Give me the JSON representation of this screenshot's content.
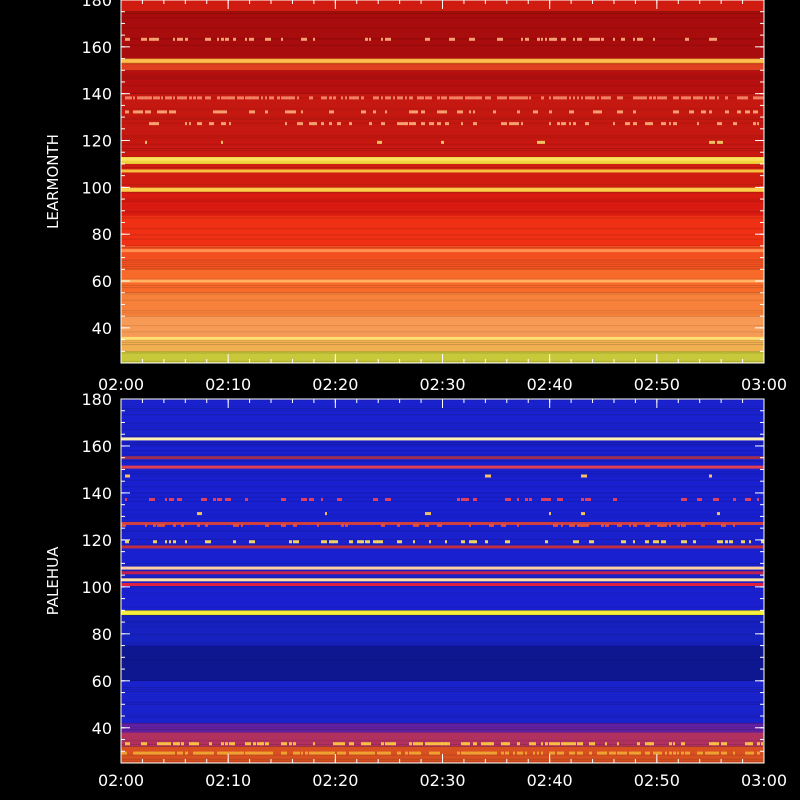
{
  "chart_data": [
    {
      "type": "heatmap",
      "ylabel": "LEARMONTH",
      "xlabel": "",
      "x_ticks": [
        "02:00",
        "02:10",
        "02:20",
        "02:30",
        "02:40",
        "02:50",
        "03:00"
      ],
      "y_ticks": [
        40,
        60,
        80,
        100,
        120,
        140,
        160,
        180
      ],
      "xlim": [
        "02:00",
        "03:00"
      ],
      "ylim": [
        25,
        180
      ],
      "colormap": "red-temperature",
      "bands": [
        {
          "y0": 25,
          "y1": 30,
          "color": "#c8c83a"
        },
        {
          "y0": 30,
          "y1": 35,
          "color": "#f0b050"
        },
        {
          "y0": 35,
          "y1": 45,
          "color": "#f79a55"
        },
        {
          "y0": 45,
          "y1": 55,
          "color": "#f7803a"
        },
        {
          "y0": 55,
          "y1": 65,
          "color": "#f86a2a"
        },
        {
          "y0": 65,
          "y1": 75,
          "color": "#f25020"
        },
        {
          "y0": 75,
          "y1": 88,
          "color": "#f03014"
        },
        {
          "y0": 88,
          "y1": 98,
          "color": "#d81a10"
        },
        {
          "y0": 98,
          "y1": 100,
          "color": "#f0a030"
        },
        {
          "y0": 100,
          "y1": 110,
          "color": "#d01c10"
        },
        {
          "y0": 110,
          "y1": 113,
          "color": "#f2d23c"
        },
        {
          "y0": 113,
          "y1": 120,
          "color": "#c81610"
        },
        {
          "y0": 120,
          "y1": 140,
          "color": "#c51810"
        },
        {
          "y0": 140,
          "y1": 150,
          "color": "#b81010"
        },
        {
          "y0": 150,
          "y1": 153,
          "color": "#e04020"
        },
        {
          "y0": 153,
          "y1": 155,
          "color": "#f0a030"
        },
        {
          "y0": 155,
          "y1": 175,
          "color": "#a80c0c"
        },
        {
          "y0": 175,
          "y1": 180,
          "color": "#d01c10"
        }
      ],
      "lines": [
        {
          "y": 35.5,
          "color": "#ffe070"
        },
        {
          "y": 60,
          "color": "#ffb060"
        },
        {
          "y": 73,
          "color": "#ff9050"
        },
        {
          "y": 99,
          "color": "#ffd050"
        },
        {
          "y": 107,
          "color": "#f8c040"
        },
        {
          "y": 112,
          "color": "#ffe060"
        },
        {
          "y": 154,
          "color": "#ffc050"
        }
      ],
      "speckle_rows": [
        {
          "y": 163,
          "color": "#f4a070",
          "density": 0.35
        },
        {
          "y": 132,
          "color": "#f6a070",
          "density": 0.3
        },
        {
          "y": 127,
          "color": "#f6a070",
          "density": 0.3
        },
        {
          "y": 119,
          "color": "#f0c060",
          "density": 0.05
        },
        {
          "y": 138,
          "color": "#f08060",
          "density": 0.8
        }
      ]
    },
    {
      "type": "heatmap",
      "ylabel": "PALEHUA",
      "xlabel": "",
      "x_ticks": [
        "02:00",
        "02:10",
        "02:20",
        "02:30",
        "02:40",
        "02:50",
        "03:00"
      ],
      "y_ticks": [
        40,
        60,
        80,
        100,
        120,
        140,
        160,
        180
      ],
      "xlim": [
        "02:00",
        "03:00"
      ],
      "ylim": [
        25,
        180
      ],
      "colormap": "blue-red-yellow",
      "bands": [
        {
          "y0": 25,
          "y1": 32,
          "color": "#d85020"
        },
        {
          "y0": 32,
          "y1": 38,
          "color": "#b03060"
        },
        {
          "y0": 38,
          "y1": 42,
          "color": "#6020a0"
        },
        {
          "y0": 42,
          "y1": 60,
          "color": "#1a22cc"
        },
        {
          "y0": 60,
          "y1": 75,
          "color": "#0e1690"
        },
        {
          "y0": 75,
          "y1": 88,
          "color": "#1622c0"
        },
        {
          "y0": 88,
          "y1": 90,
          "color": "#e8e020"
        },
        {
          "y0": 90,
          "y1": 100,
          "color": "#1a20d0"
        },
        {
          "y0": 100,
          "y1": 110,
          "color": "#1a20c8"
        },
        {
          "y0": 110,
          "y1": 118,
          "color": "#1820d0"
        },
        {
          "y0": 118,
          "y1": 128,
          "color": "#1a20cc"
        },
        {
          "y0": 128,
          "y1": 160,
          "color": "#1820d0"
        },
        {
          "y0": 160,
          "y1": 164,
          "color": "#1a20cc"
        },
        {
          "y0": 164,
          "y1": 180,
          "color": "#1a22d0"
        }
      ],
      "lines": [
        {
          "y": 89,
          "color": "#f8f040"
        },
        {
          "y": 101,
          "color": "#e02040"
        },
        {
          "y": 103,
          "color": "#ffe0a0"
        },
        {
          "y": 106,
          "color": "#c02050"
        },
        {
          "y": 108,
          "color": "#ffd0a0"
        },
        {
          "y": 117,
          "color": "#c03040"
        },
        {
          "y": 127,
          "color": "#d04040"
        },
        {
          "y": 151,
          "color": "#e04050"
        },
        {
          "y": 155,
          "color": "#a03050"
        },
        {
          "y": 163,
          "color": "#fff0b0"
        }
      ],
      "speckle_rows": [
        {
          "y": 119,
          "color": "#f0d060",
          "density": 0.25
        },
        {
          "y": 126,
          "color": "#e05040",
          "density": 0.3
        },
        {
          "y": 131,
          "color": "#f0c060",
          "density": 0.05
        },
        {
          "y": 137,
          "color": "#e04060",
          "density": 0.2
        },
        {
          "y": 147,
          "color": "#f8c060",
          "density": 0.06
        },
        {
          "y": 33,
          "color": "#f8c040",
          "density": 0.6
        },
        {
          "y": 29,
          "color": "#f0a030",
          "density": 0.7
        }
      ]
    }
  ]
}
